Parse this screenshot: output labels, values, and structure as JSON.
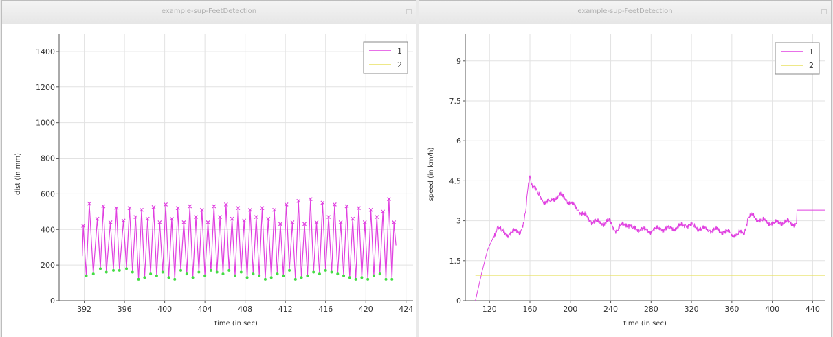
{
  "windows": [
    {
      "title": "example-sup-FeetDetection"
    },
    {
      "title": "example-sup-FeetDetection"
    }
  ],
  "colors": {
    "series1": "#e040e0",
    "series2": "#e8e060",
    "minima": "#44dd44",
    "grid": "#e2e2e2"
  },
  "chart_data": [
    {
      "type": "line",
      "xlabel": "time (in sec)",
      "ylabel": "dist (in mm)",
      "xlim": [
        389.5,
        424.7
      ],
      "ylim": [
        0,
        1500
      ],
      "xticks": [
        392,
        396,
        400,
        404,
        408,
        412,
        416,
        420,
        424
      ],
      "yticks": [
        0,
        200,
        400,
        600,
        800,
        1000,
        1200,
        1400
      ],
      "legend": {
        "position": "top-right",
        "entries": [
          "1",
          "2"
        ]
      },
      "grid": true,
      "series": [
        {
          "name": "1",
          "color": "#e040e0",
          "peaks": {
            "t": [
              391.9,
              392.5,
              393.3,
              393.9,
              394.6,
              395.2,
              395.9,
              396.5,
              397.1,
              397.7,
              398.3,
              398.9,
              399.5,
              400.1,
              400.7,
              401.3,
              401.9,
              402.5,
              403.1,
              403.7,
              404.3,
              404.9,
              405.5,
              406.1,
              406.7,
              407.3,
              407.9,
              408.5,
              409.1,
              409.7,
              410.3,
              410.9,
              411.5,
              412.1,
              412.7,
              413.3,
              413.9,
              414.5,
              415.1,
              415.7,
              416.3,
              416.9,
              417.5,
              418.1,
              418.7,
              419.3,
              419.9,
              420.5,
              421.1,
              421.7,
              422.3,
              422.8
            ],
            "v": [
              420,
              545,
              460,
              530,
              440,
              520,
              450,
              520,
              470,
              510,
              460,
              525,
              440,
              540,
              460,
              520,
              440,
              530,
              470,
              510,
              440,
              530,
              470,
              540,
              460,
              520,
              450,
              510,
              470,
              520,
              460,
              510,
              430,
              540,
              440,
              560,
              430,
              570,
              440,
              550,
              470,
              540,
              440,
              530,
              460,
              520,
              440,
              510,
              470,
              500,
              570,
              440
            ]
          },
          "troughs": {
            "t": [
              392.2,
              392.9,
              393.6,
              394.2,
              394.9,
              395.5,
              396.2,
              396.8,
              397.4,
              398.0,
              398.6,
              399.2,
              399.8,
              400.4,
              401.0,
              401.6,
              402.2,
              402.8,
              403.4,
              404.0,
              404.6,
              405.2,
              405.8,
              406.4,
              407.0,
              407.6,
              408.2,
              408.8,
              409.4,
              410.0,
              410.6,
              411.2,
              411.8,
              412.4,
              413.0,
              413.6,
              414.2,
              414.8,
              415.4,
              416.0,
              416.6,
              417.2,
              417.8,
              418.4,
              419.0,
              419.6,
              420.2,
              420.8,
              421.4,
              422.0,
              422.6
            ],
            "v": [
              140,
              150,
              180,
              160,
              170,
              170,
              180,
              160,
              120,
              130,
              150,
              140,
              160,
              130,
              120,
              170,
              150,
              130,
              160,
              140,
              170,
              160,
              150,
              170,
              140,
              160,
              130,
              150,
              140,
              120,
              130,
              150,
              140,
              170,
              120,
              130,
              140,
              160,
              150,
              170,
              160,
              150,
              140,
              130,
              120,
              130,
              120,
              140,
              150,
              120,
              120
            ]
          },
          "start": {
            "t": 391.8,
            "v": 250
          },
          "end": {
            "t": 423.0,
            "v": 310
          }
        },
        {
          "name": "2",
          "color": "#e8e060",
          "values": []
        }
      ]
    },
    {
      "type": "line",
      "xlabel": "time (in sec)",
      "ylabel": "speed (in km/h)",
      "xlim": [
        96,
        452
      ],
      "ylim": [
        0,
        10
      ],
      "xticks": [
        120,
        160,
        200,
        240,
        280,
        320,
        360,
        400,
        440
      ],
      "yticks": [
        0,
        1.5,
        3,
        4.5,
        6,
        7.5,
        9
      ],
      "legend": {
        "position": "top-right",
        "entries": [
          "1",
          "2"
        ]
      },
      "grid": true,
      "series": [
        {
          "name": "1",
          "color": "#e040e0",
          "x": [
            106,
            112,
            118,
            124,
            128,
            132,
            136,
            140,
            146,
            150,
            154,
            156,
            158,
            160,
            162,
            164,
            168,
            172,
            176,
            180,
            186,
            190,
            196,
            202,
            208,
            214,
            220,
            226,
            232,
            238,
            242,
            246,
            250,
            256,
            262,
            270,
            276,
            282,
            290,
            298,
            306,
            314,
            322,
            330,
            338,
            346,
            352,
            360,
            366,
            372,
            376,
            380,
            384,
            390,
            396,
            402,
            408,
            414,
            420,
            424,
            424.5,
            452
          ],
          "y": [
            0,
            1.0,
            1.9,
            2.4,
            2.8,
            2.6,
            2.5,
            2.5,
            2.6,
            2.6,
            2.9,
            3.4,
            4.2,
            4.7,
            4.4,
            4.3,
            4.0,
            3.8,
            3.7,
            3.7,
            3.9,
            3.95,
            3.8,
            3.6,
            3.4,
            3.2,
            3.0,
            2.95,
            2.9,
            3.0,
            2.8,
            2.6,
            2.8,
            2.9,
            2.7,
            2.7,
            2.6,
            2.65,
            2.7,
            2.7,
            2.75,
            2.85,
            2.8,
            2.7,
            2.65,
            2.65,
            2.6,
            2.5,
            2.5,
            2.55,
            3.1,
            3.2,
            3.1,
            3.0,
            2.95,
            2.9,
            2.95,
            2.95,
            2.9,
            2.9,
            3.4,
            3.4
          ]
        },
        {
          "name": "2",
          "color": "#e8e060",
          "x": [
            106,
            452
          ],
          "y": [
            0.95,
            0.95
          ]
        }
      ]
    }
  ]
}
